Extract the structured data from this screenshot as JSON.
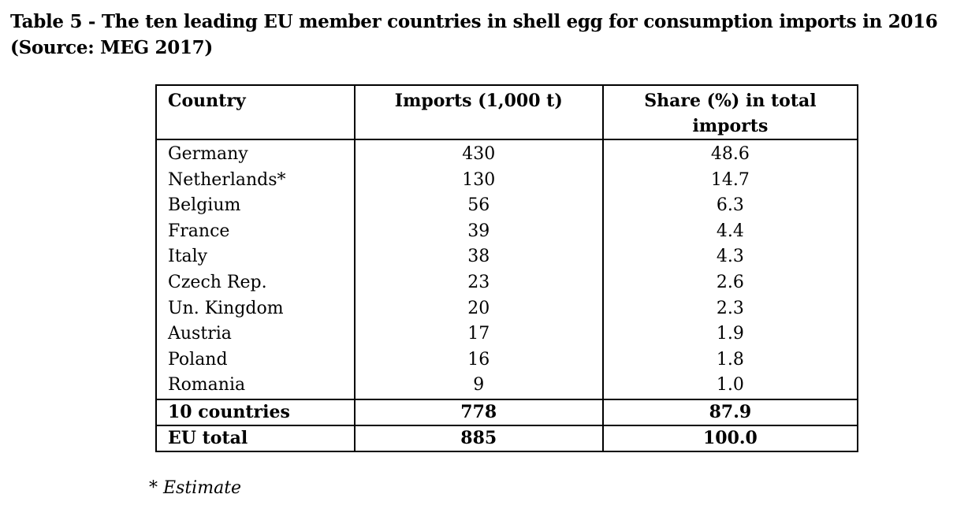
{
  "caption": {
    "line1": "Table 5 - The ten leading EU member countries in shell egg for consumption imports in 2016",
    "line2": "(Source: MEG 2017)"
  },
  "table": {
    "headers": {
      "country": "Country",
      "imports": "Imports (1,000 t)",
      "share_line1": "Share (%) in total",
      "share_line2": "imports"
    },
    "rows": [
      {
        "country": "Germany",
        "imports": "430",
        "share": "48.6"
      },
      {
        "country": "Netherlands*",
        "imports": "130",
        "share": "14.7"
      },
      {
        "country": "Belgium",
        "imports": "56",
        "share": "6.3"
      },
      {
        "country": "France",
        "imports": "39",
        "share": "4.4"
      },
      {
        "country": "Italy",
        "imports": "38",
        "share": "4.3"
      },
      {
        "country": "Czech Rep.",
        "imports": "23",
        "share": "2.6"
      },
      {
        "country": "Un. Kingdom",
        "imports": "20",
        "share": "2.3"
      },
      {
        "country": "Austria",
        "imports": "17",
        "share": "1.9"
      },
      {
        "country": "Poland",
        "imports": "16",
        "share": "1.8"
      },
      {
        "country": "Romania",
        "imports": "9",
        "share": "1.0"
      }
    ],
    "summary": [
      {
        "country": "10 countries",
        "imports": "778",
        "share": "87.9"
      },
      {
        "country": "EU total",
        "imports": "885",
        "share": "100.0"
      }
    ]
  },
  "footnote": "* Estimate"
}
